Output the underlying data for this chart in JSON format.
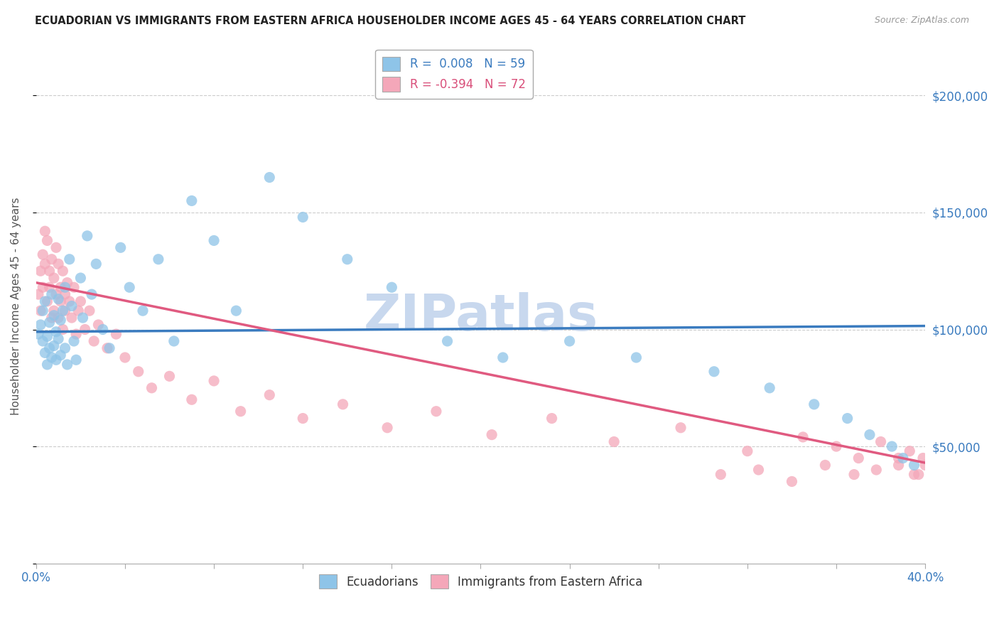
{
  "title": "ECUADORIAN VS IMMIGRANTS FROM EASTERN AFRICA HOUSEHOLDER INCOME AGES 45 - 64 YEARS CORRELATION CHART",
  "source": "Source: ZipAtlas.com",
  "ylabel": "Householder Income Ages 45 - 64 years",
  "xlim": [
    0.0,
    0.4
  ],
  "ylim": [
    0,
    220000
  ],
  "yticks": [
    0,
    50000,
    100000,
    150000,
    200000
  ],
  "ytick_labels": [
    "",
    "$50,000",
    "$100,000",
    "$150,000",
    "$200,000"
  ],
  "legend_r1": "R =  0.008",
  "legend_n1": "N = 59",
  "legend_r2": "R = -0.394",
  "legend_n2": "N = 72",
  "color_blue": "#8ec4e8",
  "color_pink": "#f4a7b9",
  "color_blue_text": "#3a7bbf",
  "color_pink_text": "#d94f7a",
  "color_trendline_blue": "#3a7bbf",
  "color_trendline_pink": "#e05a80",
  "watermark": "ZIPatlas",
  "watermark_color": "#c8d8ee",
  "background_color": "#ffffff",
  "trendline_blue_y0": 99000,
  "trendline_blue_y1": 101500,
  "trendline_pink_y0": 120000,
  "trendline_pink_y1": 43000,
  "ecuadorians_x": [
    0.001,
    0.002,
    0.003,
    0.003,
    0.004,
    0.004,
    0.005,
    0.005,
    0.006,
    0.006,
    0.007,
    0.007,
    0.008,
    0.008,
    0.009,
    0.009,
    0.01,
    0.01,
    0.011,
    0.011,
    0.012,
    0.013,
    0.013,
    0.014,
    0.015,
    0.016,
    0.017,
    0.018,
    0.02,
    0.021,
    0.023,
    0.025,
    0.027,
    0.03,
    0.033,
    0.038,
    0.042,
    0.048,
    0.055,
    0.062,
    0.07,
    0.08,
    0.09,
    0.105,
    0.12,
    0.14,
    0.16,
    0.185,
    0.21,
    0.24,
    0.27,
    0.305,
    0.33,
    0.35,
    0.365,
    0.375,
    0.385,
    0.39,
    0.395
  ],
  "ecuadorians_y": [
    98000,
    102000,
    95000,
    108000,
    90000,
    112000,
    97000,
    85000,
    103000,
    92000,
    115000,
    88000,
    106000,
    93000,
    99000,
    87000,
    113000,
    96000,
    104000,
    89000,
    108000,
    92000,
    118000,
    85000,
    130000,
    110000,
    95000,
    87000,
    122000,
    105000,
    140000,
    115000,
    128000,
    100000,
    92000,
    135000,
    118000,
    108000,
    130000,
    95000,
    155000,
    138000,
    108000,
    165000,
    148000,
    130000,
    118000,
    95000,
    88000,
    95000,
    88000,
    82000,
    75000,
    68000,
    62000,
    55000,
    50000,
    45000,
    42000
  ],
  "eastern_africa_x": [
    0.001,
    0.002,
    0.002,
    0.003,
    0.003,
    0.004,
    0.004,
    0.005,
    0.005,
    0.006,
    0.006,
    0.007,
    0.007,
    0.008,
    0.008,
    0.009,
    0.009,
    0.01,
    0.01,
    0.011,
    0.011,
    0.012,
    0.012,
    0.013,
    0.013,
    0.014,
    0.015,
    0.016,
    0.017,
    0.018,
    0.019,
    0.02,
    0.022,
    0.024,
    0.026,
    0.028,
    0.032,
    0.036,
    0.04,
    0.046,
    0.052,
    0.06,
    0.07,
    0.08,
    0.092,
    0.105,
    0.12,
    0.138,
    0.158,
    0.18,
    0.205,
    0.232,
    0.26,
    0.29,
    0.32,
    0.345,
    0.36,
    0.37,
    0.38,
    0.388,
    0.393,
    0.397,
    0.399,
    0.4,
    0.395,
    0.388,
    0.378,
    0.368,
    0.355,
    0.34,
    0.325,
    0.308
  ],
  "eastern_africa_y": [
    115000,
    125000,
    108000,
    132000,
    118000,
    142000,
    128000,
    138000,
    112000,
    125000,
    118000,
    130000,
    105000,
    122000,
    108000,
    135000,
    115000,
    128000,
    105000,
    118000,
    112000,
    125000,
    100000,
    115000,
    108000,
    120000,
    112000,
    105000,
    118000,
    98000,
    108000,
    112000,
    100000,
    108000,
    95000,
    102000,
    92000,
    98000,
    88000,
    82000,
    75000,
    80000,
    70000,
    78000,
    65000,
    72000,
    62000,
    68000,
    58000,
    65000,
    55000,
    62000,
    52000,
    58000,
    48000,
    54000,
    50000,
    45000,
    52000,
    42000,
    48000,
    38000,
    45000,
    42000,
    38000,
    45000,
    40000,
    38000,
    42000,
    35000,
    40000,
    38000
  ]
}
